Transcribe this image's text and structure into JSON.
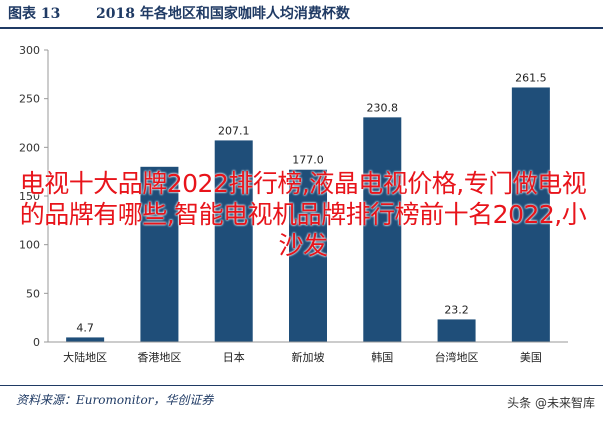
{
  "header": {
    "figure_label": "图表 13",
    "title": "2018 年各地区和国家咖啡人均消费杯数"
  },
  "footer": {
    "source": "资料来源：Euromonitor，华创证券",
    "watermark": "头条 @未来智库"
  },
  "overlay_text": "电视十大品牌2022排行榜,液晶电视价格,专门做电视的品牌有哪些,智能电视机品牌排行榜前十名2022,小沙发",
  "colors": {
    "bar": "#1f4e79",
    "header": "#1f3a64",
    "overlay": "#e8141b"
  },
  "chart_data": {
    "type": "bar",
    "title": "2018 年各地区和国家咖啡人均消费杯数",
    "xlabel": "",
    "ylabel": "",
    "categories": [
      "大陆地区",
      "香港地区",
      "日本",
      "新加坡",
      "韩国",
      "台湾地区",
      "美国"
    ],
    "values": [
      4.7,
      180.0,
      207.1,
      177.0,
      230.8,
      23.2,
      261.5
    ],
    "value_labels": [
      "4.7",
      "",
      "207.1",
      "177.0",
      "230.8",
      "23.2",
      "261.5"
    ],
    "ylim": [
      0,
      300
    ],
    "yticks": [
      "0",
      "50",
      "100",
      "150",
      "200",
      "250",
      "300"
    ],
    "grid": false,
    "legend": "none"
  }
}
